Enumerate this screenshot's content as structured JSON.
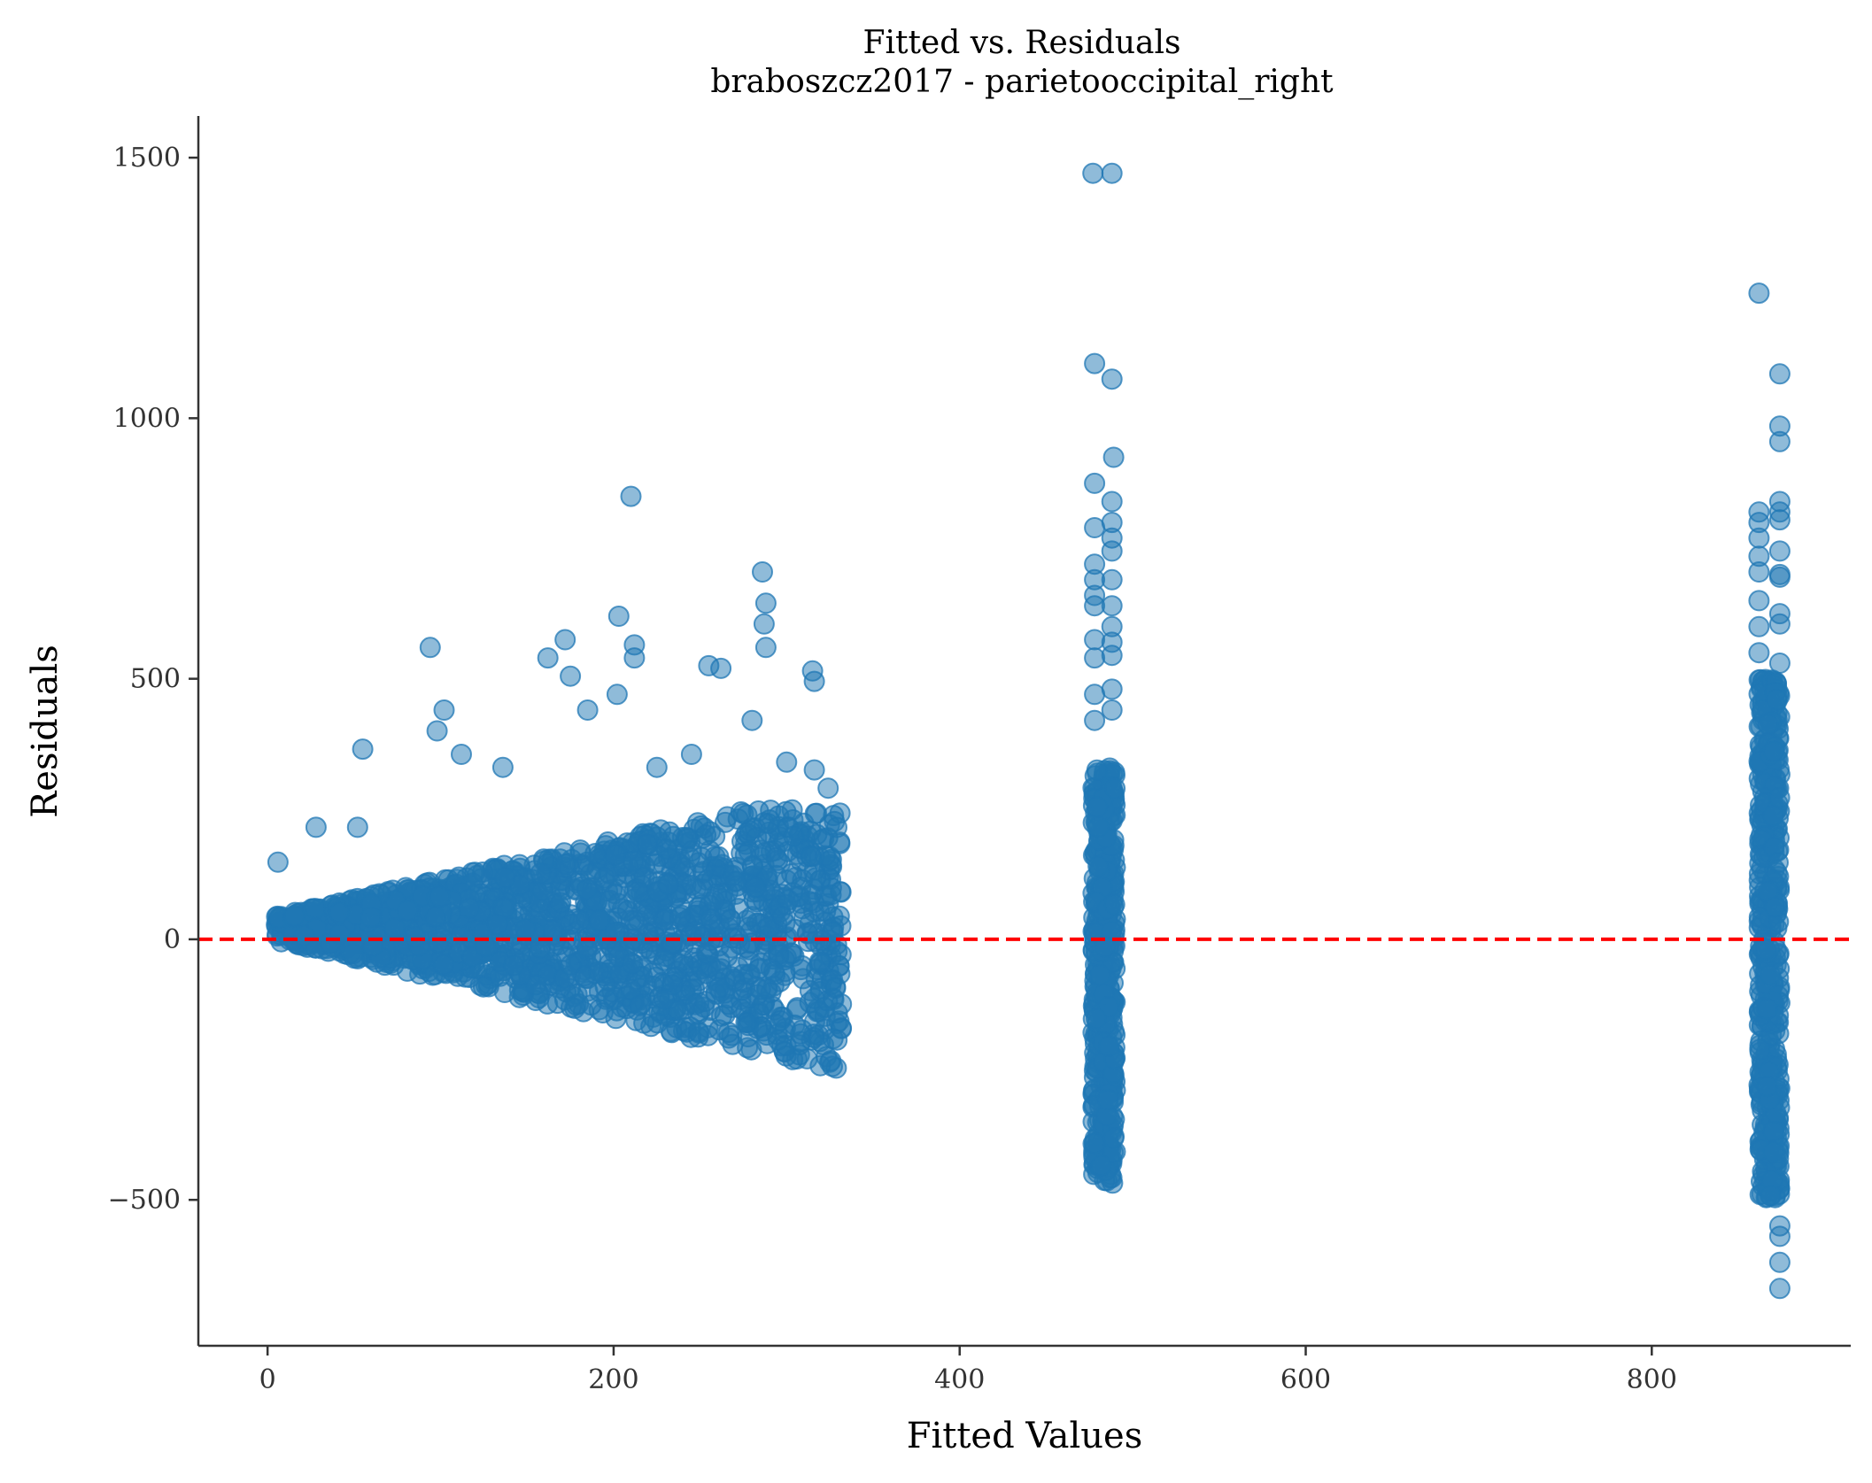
{
  "chart_data": {
    "type": "scatter",
    "title": "Fitted vs. Residuals",
    "subtitle": "braboszcz2017 - parietooccipital_right",
    "xlabel": "Fitted Values",
    "ylabel": "Residuals",
    "xlim": [
      -40,
      915
    ],
    "ylim": [
      -780,
      1580
    ],
    "xticks": [
      0,
      200,
      400,
      600,
      800
    ],
    "yticks": [
      -500,
      0,
      500,
      1000,
      1500
    ],
    "xtick_labels": [
      "0",
      "200",
      "400",
      "600",
      "800"
    ],
    "ytick_labels": [
      "−500",
      "0",
      "500",
      "1000",
      "1500"
    ],
    "reference_line": {
      "y": 0,
      "style": "dashed",
      "color": "#ff0000"
    },
    "marker_color": "#1f77b4",
    "marker_alpha": 0.5,
    "grid": false,
    "clusters": [
      {
        "x_range": [
          5,
          332
        ],
        "y_min_slope": -0.78,
        "y_max": 250,
        "count": 1800
      },
      {
        "x_range": [
          477,
          490
        ],
        "y_range": [
          -470,
          330
        ],
        "count": 520
      },
      {
        "x_range": [
          862,
          874
        ],
        "y_range": [
          -500,
          500
        ],
        "count": 520
      }
    ],
    "outliers": [
      [
        6,
        148
      ],
      [
        28,
        215
      ],
      [
        52,
        215
      ],
      [
        55,
        365
      ],
      [
        94,
        560
      ],
      [
        98,
        400
      ],
      [
        102,
        440
      ],
      [
        112,
        355
      ],
      [
        136,
        330
      ],
      [
        162,
        540
      ],
      [
        172,
        575
      ],
      [
        175,
        505
      ],
      [
        185,
        440
      ],
      [
        203,
        620
      ],
      [
        202,
        470
      ],
      [
        210,
        850
      ],
      [
        212,
        565
      ],
      [
        212,
        540
      ],
      [
        225,
        330
      ],
      [
        245,
        355
      ],
      [
        255,
        525
      ],
      [
        262,
        520
      ],
      [
        280,
        420
      ],
      [
        286,
        705
      ],
      [
        288,
        645
      ],
      [
        287,
        605
      ],
      [
        288,
        560
      ],
      [
        300,
        340
      ],
      [
        315,
        515
      ],
      [
        316,
        495
      ],
      [
        316,
        325
      ],
      [
        324,
        290
      ],
      [
        477,
        1470
      ],
      [
        488,
        1470
      ],
      [
        478,
        1105
      ],
      [
        488,
        1075
      ],
      [
        489,
        925
      ],
      [
        478,
        875
      ],
      [
        488,
        840
      ],
      [
        478,
        790
      ],
      [
        488,
        800
      ],
      [
        488,
        770
      ],
      [
        478,
        720
      ],
      [
        488,
        745
      ],
      [
        478,
        690
      ],
      [
        488,
        690
      ],
      [
        478,
        660
      ],
      [
        478,
        640
      ],
      [
        488,
        640
      ],
      [
        488,
        600
      ],
      [
        478,
        575
      ],
      [
        488,
        570
      ],
      [
        488,
        545
      ],
      [
        478,
        540
      ],
      [
        478,
        470
      ],
      [
        488,
        480
      ],
      [
        478,
        420
      ],
      [
        488,
        440
      ],
      [
        862,
        1240
      ],
      [
        874,
        1085
      ],
      [
        874,
        985
      ],
      [
        874,
        955
      ],
      [
        874,
        840
      ],
      [
        862,
        820
      ],
      [
        874,
        820
      ],
      [
        862,
        800
      ],
      [
        874,
        805
      ],
      [
        862,
        770
      ],
      [
        874,
        745
      ],
      [
        862,
        735
      ],
      [
        862,
        705
      ],
      [
        874,
        700
      ],
      [
        874,
        695
      ],
      [
        862,
        650
      ],
      [
        874,
        625
      ],
      [
        862,
        600
      ],
      [
        874,
        605
      ],
      [
        862,
        550
      ],
      [
        874,
        530
      ],
      [
        874,
        -550
      ],
      [
        874,
        -570
      ],
      [
        874,
        -620
      ],
      [
        874,
        -670
      ]
    ]
  }
}
